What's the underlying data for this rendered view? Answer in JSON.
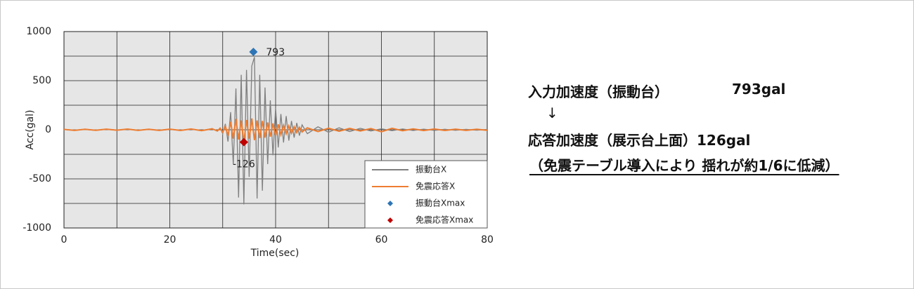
{
  "chart_data": {
    "type": "line",
    "xlabel": "Time(sec)",
    "ylabel": "Acc(gal)",
    "xlim": [
      0,
      80
    ],
    "xticks": [
      0,
      20,
      40,
      60,
      80
    ],
    "xminorticks": [
      10,
      30,
      50,
      70
    ],
    "ylim": [
      -1000,
      1000
    ],
    "yticks": [
      -1000,
      -500,
      0,
      500,
      1000
    ],
    "yminorticks": [
      -750,
      -250,
      250,
      750
    ],
    "grid": true,
    "legend": "lower right",
    "x": [
      0,
      2,
      4,
      6,
      8,
      10,
      12,
      14,
      16,
      18,
      20,
      22,
      24,
      26,
      28,
      29,
      29.5,
      30,
      30.5,
      31,
      31.5,
      32,
      32.5,
      33,
      33.5,
      34,
      34.5,
      35,
      35.5,
      36,
      36.5,
      37,
      37.5,
      38,
      38.5,
      39,
      39.5,
      40,
      40.5,
      41,
      41.5,
      42,
      42.5,
      43,
      43.5,
      44,
      44.5,
      45,
      46,
      48,
      50,
      52,
      54,
      56,
      58,
      60,
      62,
      64,
      66,
      68,
      70,
      72,
      74,
      76,
      78,
      80
    ],
    "series": [
      {
        "name": "振動台X",
        "color": "#7f7f7f",
        "values": [
          3,
          -5,
          4,
          -6,
          5,
          -4,
          6,
          -5,
          4,
          -7,
          5,
          -6,
          8,
          -8,
          12,
          -15,
          20,
          -40,
          60,
          -120,
          180,
          -350,
          420,
          -690,
          560,
          -760,
          610,
          -480,
          650,
          740,
          -700,
          560,
          -620,
          430,
          -350,
          300,
          -260,
          220,
          -180,
          160,
          -130,
          140,
          -110,
          90,
          -80,
          70,
          -60,
          50,
          -40,
          30,
          -25,
          20,
          -18,
          15,
          -12,
          10,
          -9,
          8,
          -7,
          6,
          -6,
          5,
          -5,
          4,
          -4,
          3
        ]
      },
      {
        "name": "免震応答X",
        "color": "#ed7d31",
        "values": [
          4,
          -6,
          5,
          -5,
          6,
          -4,
          7,
          -6,
          5,
          -6,
          6,
          -7,
          8,
          -9,
          10,
          -12,
          15,
          -25,
          35,
          -60,
          80,
          -90,
          110,
          -100,
          95,
          -126,
          100,
          -90,
          115,
          -105,
          95,
          -85,
          90,
          -80,
          75,
          -70,
          65,
          -60,
          55,
          -50,
          45,
          -40,
          40,
          -35,
          30,
          -28,
          25,
          -22,
          20,
          -18,
          16,
          -15,
          14,
          -12,
          12,
          -20,
          15,
          -10,
          9,
          -8,
          8,
          -7,
          6,
          -6,
          5,
          -5
        ]
      }
    ],
    "markers": [
      {
        "name": "振動台Xmax",
        "color": "#2e75b6",
        "x": 35.8,
        "value": 793
      },
      {
        "name": "免震応答Xmax",
        "color": "#c00000",
        "x": 34,
        "value": -126
      }
    ]
  },
  "summary": {
    "line1_label": "入力加速度（振動台）",
    "line1_value": "793gal",
    "arrow": "↓",
    "line2": "応答加速度（展示台上面）126gal",
    "line3": "（免震テーブル導入により 揺れが約1/6に低減）"
  }
}
